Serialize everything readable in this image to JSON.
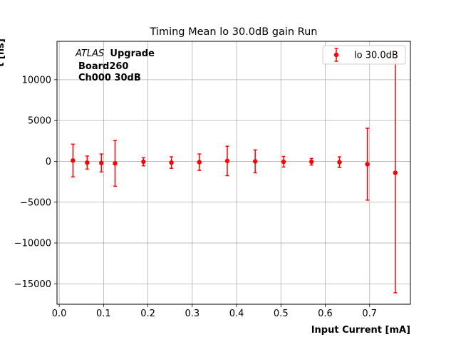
{
  "chart_data": {
    "type": "scatter",
    "title": "Timing Mean lo 30.0dB gain Run",
    "xlabel": "Input Current [mA]",
    "ylabel": "t [ns]",
    "xlim": [
      -0.005,
      0.792
    ],
    "ylim": [
      -17500,
      14700
    ],
    "xticks": [
      0.0,
      0.1,
      0.2,
      0.3,
      0.4,
      0.5,
      0.6,
      0.7
    ],
    "xtick_labels": [
      "0.0",
      "0.1",
      "0.2",
      "0.3",
      "0.4",
      "0.5",
      "0.6",
      "0.7"
    ],
    "yticks": [
      -15000,
      -10000,
      -5000,
      0,
      5000,
      10000
    ],
    "ytick_labels": [
      "−15000",
      "−10000",
      "−5000",
      "0",
      "5000",
      "10000"
    ],
    "grid": true,
    "legend_position": "top-right",
    "series": [
      {
        "name": "lo 30.0dB",
        "color": "#ff0000",
        "marker": "circle",
        "x": [
          0.031,
          0.063,
          0.095,
          0.126,
          0.19,
          0.253,
          0.316,
          0.379,
          0.442,
          0.506,
          0.569,
          0.632,
          0.695,
          0.758
        ],
        "y": [
          100,
          -150,
          -200,
          -250,
          -50,
          -150,
          -100,
          50,
          0,
          -50,
          -50,
          -100,
          -350,
          -1400
        ],
        "yerr": [
          2000,
          800,
          1100,
          2800,
          500,
          700,
          1000,
          1800,
          1400,
          650,
          400,
          650,
          4400,
          14700
        ]
      }
    ],
    "annotations": {
      "experiment_italic": "ATLAS",
      "experiment_bold": "Upgrade",
      "board": "Board260",
      "channel": "Ch000 30dB"
    }
  }
}
